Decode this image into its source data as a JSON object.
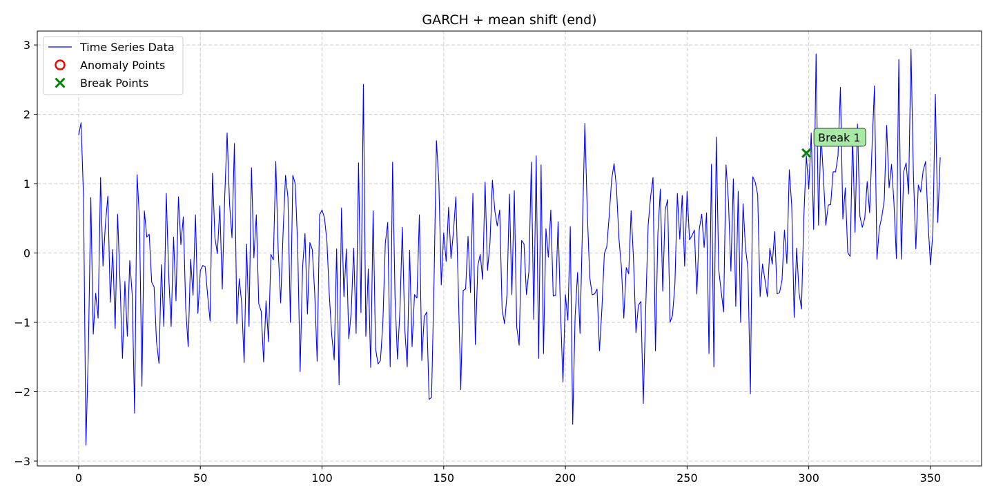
{
  "chart_data": {
    "type": "line",
    "title": "GARCH + mean shift (end)",
    "xlabel": "",
    "ylabel": "",
    "xlim": [
      -17,
      371
    ],
    "ylim": [
      -3.07,
      3.2
    ],
    "xticks": [
      0,
      50,
      100,
      150,
      200,
      250,
      300,
      350
    ],
    "yticks": [
      -3,
      -2,
      -1,
      0,
      1,
      2,
      3
    ],
    "ytick_labels": [
      "−3",
      "−2",
      "−1",
      "0",
      "1",
      "2",
      "3"
    ],
    "grid": true,
    "legend_position": "top-left",
    "legend": [
      {
        "label": "Time Series Data",
        "marker": "line",
        "color": "#0000ff"
      },
      {
        "label": "Anomaly Points",
        "marker": "circle",
        "color": "#ff0000"
      },
      {
        "label": "Break Points",
        "marker": "x",
        "color": "#008000"
      }
    ],
    "series": [
      {
        "name": "Time Series Data",
        "color": "#0000ff",
        "x_start": 0,
        "values": [
          1.7,
          1.88,
          0.8,
          -2.77,
          -1.4,
          0.8,
          -1.17,
          -0.58,
          -0.94,
          1.09,
          -0.19,
          0.42,
          0.82,
          -0.71,
          0.05,
          -1.09,
          0.56,
          -0.42,
          -1.52,
          -0.41,
          -1.2,
          -0.11,
          -0.6,
          -2.31,
          1.13,
          0.49,
          -1.92,
          0.61,
          0.23,
          0.27,
          -0.42,
          -0.49,
          -1.28,
          -1.59,
          -0.17,
          -1.06,
          0.86,
          -0.32,
          -1.06,
          0.23,
          -0.69,
          0.81,
          0.12,
          0.52,
          -0.8,
          -1.35,
          -0.09,
          -0.61,
          0.55,
          -0.87,
          -0.25,
          -0.18,
          -0.2,
          -0.61,
          -0.98,
          1.15,
          0.22,
          -0.01,
          0.68,
          -0.52,
          0.79,
          1.73,
          0.71,
          0.22,
          1.58,
          -1.02,
          -0.37,
          -0.73,
          -1.58,
          0.13,
          -1.06,
          1.23,
          -0.07,
          0.55,
          -0.73,
          -0.84,
          -1.57,
          -0.69,
          -1.28,
          -0.02,
          -0.1,
          1.32,
          0.03,
          -0.72,
          0.29,
          1.12,
          0.8,
          -1.0,
          1.12,
          1.0,
          0.09,
          -1.71,
          -0.21,
          0.28,
          -0.88,
          0.15,
          0.05,
          -0.58,
          -1.56,
          0.55,
          0.62,
          0.51,
          0.17,
          -0.61,
          -1.19,
          -1.54,
          0.06,
          -1.9,
          0.65,
          -0.63,
          0.06,
          -1.24,
          -0.85,
          0.07,
          -1.16,
          1.3,
          -0.86,
          2.43,
          -1.2,
          -0.23,
          -1.65,
          0.61,
          -1.38,
          -1.6,
          -1.55,
          -1.01,
          0.14,
          0.44,
          -1.64,
          1.31,
          -0.64,
          -1.53,
          -0.83,
          0.37,
          -1.09,
          -1.64,
          0.04,
          -1.35,
          -0.6,
          -0.65,
          0.55,
          -1.55,
          -0.92,
          -0.85,
          -2.11,
          -2.08,
          -0.46,
          1.62,
          1.03,
          -0.46,
          0.29,
          -0.12,
          0.66,
          -0.08,
          0.31,
          0.81,
          -0.53,
          -1.97,
          -0.54,
          -0.52,
          0.24,
          -0.57,
          0.86,
          -1.32,
          -0.19,
          -0.02,
          -0.38,
          1.02,
          -0.25,
          0.14,
          1.05,
          0.61,
          0.39,
          0.62,
          -0.82,
          -1.02,
          -0.6,
          0.85,
          -0.6,
          0.9,
          -1.07,
          -1.33,
          0.18,
          0.13,
          -0.6,
          -0.26,
          1.31,
          -0.96,
          1.4,
          -1.52,
          1.27,
          -1.45,
          0.35,
          -0.06,
          0.62,
          -0.62,
          -0.61,
          0.45,
          -0.86,
          -1.86,
          -0.6,
          -0.97,
          0.38,
          -2.47,
          -0.91,
          -0.28,
          -1.16,
          0.37,
          1.87,
          0.58,
          -0.35,
          -0.6,
          -0.59,
          -0.52,
          -1.41,
          -0.8,
          -0.01,
          0.09,
          0.54,
          1.06,
          1.29,
          0.93,
          0.21,
          -0.2,
          -0.94,
          -0.21,
          -0.3,
          0.61,
          -0.1,
          -1.15,
          -0.75,
          -0.7,
          -2.17,
          -0.8,
          0.4,
          0.81,
          1.09,
          -1.41,
          0.28,
          0.92,
          -0.55,
          0.62,
          0.77,
          -1.0,
          -0.9,
          -0.45,
          0.86,
          0.2,
          0.83,
          -0.19,
          0.89,
          0.19,
          0.25,
          0.33,
          -0.59,
          0.34,
          0.56,
          0.08,
          0.58,
          -1.45,
          1.28,
          -1.64,
          1.67,
          -0.24,
          -0.55,
          -0.85,
          1.27,
          0.74,
          -0.26,
          1.07,
          -0.77,
          0.89,
          -1.0,
          0.71,
          0.07,
          -0.22,
          -2.03,
          1.1,
          1.02,
          0.84,
          -0.63,
          -0.16,
          -0.39,
          -0.63,
          0.07,
          -0.16,
          0.31,
          -0.59,
          -0.57,
          -0.39,
          0.33,
          -0.15,
          1.2,
          0.68,
          -0.93,
          0.07,
          -0.57,
          -0.81,
          0.55,
          1.4,
          0.92,
          1.73,
          0.34,
          2.87,
          0.4,
          1.73,
          1.11,
          0.4,
          0.69,
          0.7,
          1.17,
          1.17,
          1.4,
          2.39,
          0.49,
          0.94,
          0.01,
          -0.05,
          1.7,
          0.3,
          1.86,
          0.53,
          0.37,
          0.5,
          1.03,
          0.58,
          1.54,
          2.41,
          -0.09,
          0.36,
          0.52,
          0.76,
          1.84,
          0.94,
          1.28,
          0.72,
          -0.08,
          2.79,
          -0.09,
          1.17,
          1.3,
          0.85,
          2.94,
          1.12,
          0.06,
          0.98,
          0.88,
          1.19,
          1.32,
          0.44,
          -0.17,
          0.3,
          2.29,
          0.44,
          1.38
        ]
      }
    ],
    "anomaly_points": [],
    "break_points": [
      {
        "x": 299,
        "y": 1.44,
        "label": "Break 1"
      }
    ]
  }
}
